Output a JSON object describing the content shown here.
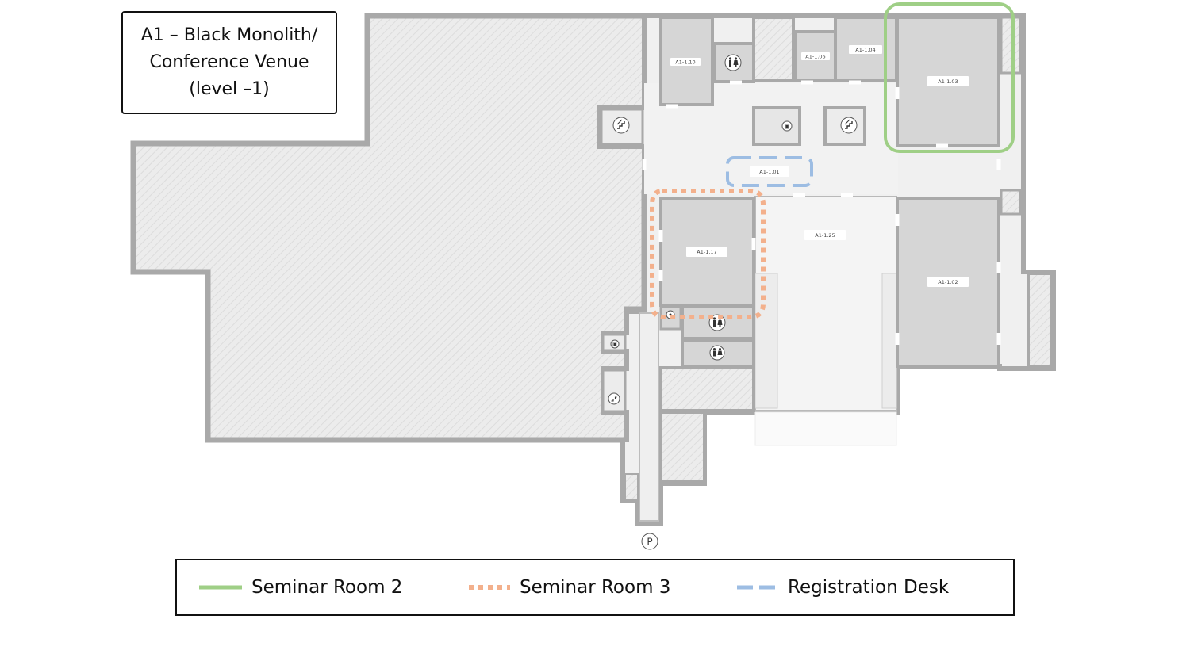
{
  "title": {
    "line1": "A1 – Black Monolith/",
    "line2": "Conference Venue",
    "line3": "(level –1)"
  },
  "rooms": {
    "r110": "A1-1.10",
    "r106": "A1-1.06",
    "r104": "A1-1.04",
    "r103": "A1-1.03",
    "r101": "A1-1.01",
    "r117": "A1-1.17",
    "r125": "A1-1.25",
    "r102": "A1-1.02"
  },
  "symbols": {
    "parking": "P",
    "elevator": "▣"
  },
  "legend": [
    {
      "label": "Seminar Room 2",
      "color": "#9fcf86",
      "style": "solid"
    },
    {
      "label": "Seminar Room 3",
      "color": "#f3b08c",
      "style": "dotted"
    },
    {
      "label": "Registration Desk",
      "color": "#9dbde3",
      "style": "dashed"
    }
  ],
  "colors": {
    "wall": "#a9a9a9",
    "hatch": "#e5e5e5",
    "room": "#d6d6d6",
    "corridor": "#efefef"
  }
}
